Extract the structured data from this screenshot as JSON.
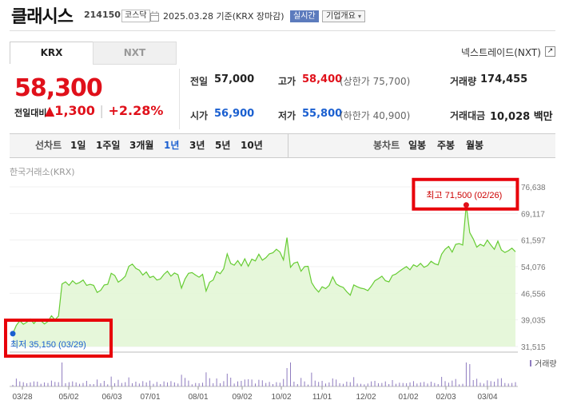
{
  "header": {
    "title": "클래시스",
    "code": "214150",
    "market_badge": "코스닥",
    "date": "2025.03.28",
    "basis": "기준(KRX 장마감)",
    "realtime_btn": "실시간",
    "company_btn": "기업개요"
  },
  "tabs": [
    "KRX",
    "NXT"
  ],
  "nxt_link": "넥스트레이드(NXT)",
  "quote": {
    "price": "58,300",
    "change_label": "전일대비",
    "change": "▲1,300",
    "change_pct": "+2.28%",
    "prev_close_label": "전일",
    "prev_close": "57,000",
    "high_label": "고가",
    "high": "58,400",
    "upper_limit": "(상한가 75,700)",
    "volume_label": "거래량",
    "volume": "174,455",
    "open_label": "시가",
    "open": "56,900",
    "low_label": "저가",
    "low": "55,800",
    "lower_limit": "(하한가 40,900)",
    "amount_label": "거래대금",
    "amount": "10,028 백만"
  },
  "line_chart_menu": {
    "label": "선차트",
    "periods": [
      "1일",
      "1주일",
      "3개월",
      "1년",
      "3년",
      "5년",
      "10년"
    ],
    "selected": "1년"
  },
  "candle_menu": {
    "label": "봉차트",
    "items": [
      "일봉",
      "주봉",
      "월봉"
    ]
  },
  "chart_source": "한국거래소(KRX)",
  "colors": {
    "up": "#e0101a",
    "down": "#1a5fd0",
    "line": "#66cc33",
    "area": "#e3f6d6"
  },
  "chart_data": {
    "type": "area",
    "x_ticks": [
      "03/28",
      "05/02",
      "06/03",
      "07/01",
      "08/01",
      "09/02",
      "10/02",
      "11/01",
      "12/02",
      "01/02",
      "02/03",
      "03/04"
    ],
    "y_ticks": [
      76638,
      69117,
      61597,
      54076,
      46556,
      39035,
      31515
    ],
    "ylim": [
      31515,
      76638
    ],
    "max_annotation": "최고 71,500 (02/26)",
    "min_annotation": "최저 35,150 (03/29)",
    "volume_legend": "거래량",
    "values": [
      35150,
      37500,
      38800,
      37800,
      38400,
      39300,
      38000,
      39200,
      38800,
      37900,
      38600,
      40200,
      39100,
      40100,
      49200,
      49800,
      48800,
      50100,
      49200,
      49600,
      50300,
      48800,
      49100,
      48800,
      46800,
      47400,
      48900,
      49100,
      52200,
      51600,
      49700,
      50400,
      51400,
      54200,
      54800,
      53600,
      53100,
      51700,
      52600,
      51000,
      51400,
      50300,
      50600,
      51900,
      52800,
      51400,
      52300,
      51800,
      48000,
      50600,
      52200,
      52400,
      51700,
      51100,
      51900,
      47200,
      49700,
      50300,
      52700,
      52100,
      53500,
      57700,
      55000,
      54500,
      55800,
      54300,
      56300,
      54200,
      56200,
      55700,
      57600,
      55900,
      56600,
      57700,
      58000,
      59000,
      58200,
      56000,
      62300,
      53900,
      55100,
      55400,
      52800,
      54100,
      54200,
      49600,
      48000,
      46900,
      48400,
      47900,
      48800,
      51200,
      49200,
      48600,
      48200,
      47000,
      46000,
      48900,
      48400,
      48000,
      47800,
      47300,
      48600,
      50100,
      50700,
      51400,
      50100,
      49800,
      51600,
      52000,
      52800,
      53500,
      54100,
      53200,
      54600,
      54100,
      55000,
      53900,
      54400,
      55600,
      54900,
      54600,
      57600,
      59000,
      59800,
      58200,
      60400,
      60600,
      60200,
      71500,
      63700,
      61900,
      59600,
      60400,
      59900,
      61600,
      60200,
      59000,
      61300,
      58800,
      58100,
      58600,
      59300,
      58300
    ]
  }
}
